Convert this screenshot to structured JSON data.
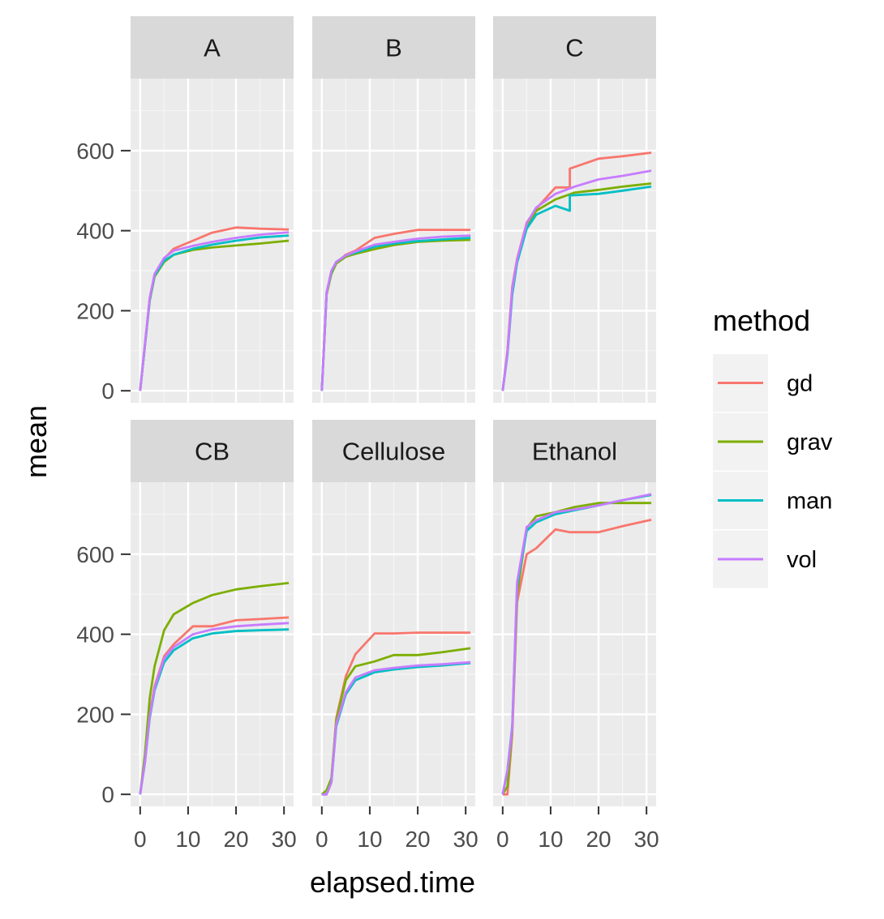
{
  "chart_data": {
    "type": "line",
    "layout": "facet_wrap",
    "xlabel": "elapsed.time",
    "ylabel": "mean",
    "xlim": [
      -2,
      32
    ],
    "x_ticks": [
      0,
      10,
      20,
      30
    ],
    "grid": true,
    "legend": {
      "title": "method",
      "position": "right",
      "entries": [
        "gd",
        "grav",
        "man",
        "vol"
      ]
    },
    "colors": {
      "gd": "#F8766D",
      "grav": "#7CAE00",
      "man": "#00BFC4",
      "vol": "#C77CFF"
    },
    "rows": [
      {
        "ylim": [
          -30,
          780
        ],
        "y_ticks": [
          0,
          200,
          400,
          600
        ],
        "panels": [
          {
            "label": "A",
            "series": [
              {
                "name": "gd",
                "x": [
                  0,
                  2,
                  3,
                  5,
                  7,
                  11,
                  15,
                  20,
                  25,
                  31
                ],
                "y": [
                  0,
                  230,
                  290,
                  330,
                  355,
                  375,
                  395,
                  408,
                  405,
                  403
                ]
              },
              {
                "name": "grav",
                "x": [
                  0,
                  2,
                  3,
                  5,
                  7,
                  11,
                  15,
                  20,
                  25,
                  31
                ],
                "y": [
                  0,
                  225,
                  285,
                  322,
                  340,
                  352,
                  358,
                  363,
                  368,
                  375
                ]
              },
              {
                "name": "man",
                "x": [
                  0,
                  2,
                  3,
                  5,
                  7,
                  11,
                  15,
                  20,
                  25,
                  31
                ],
                "y": [
                  0,
                  228,
                  288,
                  325,
                  340,
                  355,
                  365,
                  375,
                  383,
                  388
                ]
              },
              {
                "name": "vol",
                "x": [
                  0,
                  2,
                  3,
                  5,
                  7,
                  11,
                  15,
                  20,
                  25,
                  31
                ],
                "y": [
                  0,
                  232,
                  292,
                  332,
                  350,
                  362,
                  372,
                  382,
                  390,
                  396
                ]
              }
            ]
          },
          {
            "label": "B",
            "series": [
              {
                "name": "gd",
                "x": [
                  0,
                  1,
                  2,
                  3,
                  5,
                  7,
                  11,
                  15,
                  20,
                  25,
                  31
                ],
                "y": [
                  0,
                  240,
                  295,
                  320,
                  340,
                  350,
                  382,
                  392,
                  402,
                  402,
                  402
                ]
              },
              {
                "name": "grav",
                "x": [
                  0,
                  1,
                  2,
                  3,
                  5,
                  7,
                  11,
                  15,
                  20,
                  25,
                  31
                ],
                "y": [
                  0,
                  242,
                  292,
                  318,
                  335,
                  342,
                  354,
                  364,
                  372,
                  375,
                  377
                ]
              },
              {
                "name": "man",
                "x": [
                  0,
                  1,
                  2,
                  3,
                  5,
                  7,
                  11,
                  15,
                  20,
                  25,
                  31
                ],
                "y": [
                  0,
                  245,
                  298,
                  322,
                  338,
                  345,
                  360,
                  368,
                  374,
                  378,
                  382
                ]
              },
              {
                "name": "vol",
                "x": [
                  0,
                  1,
                  2,
                  3,
                  5,
                  7,
                  11,
                  15,
                  20,
                  25,
                  31
                ],
                "y": [
                  0,
                  245,
                  300,
                  322,
                  338,
                  348,
                  365,
                  372,
                  380,
                  385,
                  388
                ]
              }
            ]
          },
          {
            "label": "C",
            "series": [
              {
                "name": "gd",
                "x": [
                  0,
                  1,
                  2,
                  3,
                  5,
                  7,
                  11,
                  14,
                  14,
                  20,
                  25,
                  31
                ],
                "y": [
                  0,
                  100,
                  260,
                  330,
                  420,
                  455,
                  508,
                  508,
                  555,
                  580,
                  586,
                  595
                ]
              },
              {
                "name": "grav",
                "x": [
                  0,
                  1,
                  2,
                  3,
                  5,
                  7,
                  11,
                  15,
                  20,
                  25,
                  31
                ],
                "y": [
                  0,
                  95,
                  250,
                  325,
                  410,
                  450,
                  478,
                  495,
                  502,
                  510,
                  518
                ]
              },
              {
                "name": "man",
                "x": [
                  0,
                  1,
                  2,
                  3,
                  5,
                  7,
                  11,
                  14,
                  14,
                  20,
                  25,
                  31
                ],
                "y": [
                  0,
                  90,
                  240,
                  320,
                  405,
                  440,
                  462,
                  450,
                  488,
                  492,
                  500,
                  510
                ]
              },
              {
                "name": "vol",
                "x": [
                  0,
                  1,
                  2,
                  3,
                  5,
                  7,
                  11,
                  15,
                  20,
                  25,
                  31
                ],
                "y": [
                  0,
                  95,
                  255,
                  328,
                  418,
                  458,
                  492,
                  510,
                  528,
                  537,
                  550
                ]
              }
            ]
          }
        ]
      },
      {
        "ylim": [
          -30,
          780
        ],
        "y_ticks": [
          0,
          200,
          400,
          600
        ],
        "panels": [
          {
            "label": "CB",
            "series": [
              {
                "name": "gd",
                "x": [
                  0,
                  1,
                  2,
                  3,
                  5,
                  7,
                  11,
                  15,
                  20,
                  25,
                  31
                ],
                "y": [
                  0,
                  80,
                  200,
                  270,
                  345,
                  375,
                  420,
                  420,
                  435,
                  438,
                  442
                ]
              },
              {
                "name": "grav",
                "x": [
                  0,
                  1,
                  2,
                  3,
                  5,
                  7,
                  11,
                  15,
                  20,
                  25,
                  31
                ],
                "y": [
                  0,
                  100,
                  240,
                  320,
                  410,
                  450,
                  478,
                  498,
                  512,
                  520,
                  528
                ]
              },
              {
                "name": "man",
                "x": [
                  0,
                  1,
                  2,
                  3,
                  5,
                  7,
                  11,
                  15,
                  20,
                  25,
                  31
                ],
                "y": [
                  0,
                  80,
                  190,
                  260,
                  330,
                  360,
                  390,
                  402,
                  408,
                  410,
                  412
                ]
              },
              {
                "name": "vol",
                "x": [
                  0,
                  1,
                  2,
                  3,
                  5,
                  7,
                  11,
                  15,
                  20,
                  25,
                  31
                ],
                "y": [
                  0,
                  82,
                  195,
                  265,
                  340,
                  368,
                  400,
                  412,
                  420,
                  424,
                  428
                ]
              }
            ]
          },
          {
            "label": "Cellulose",
            "series": [
              {
                "name": "gd",
                "x": [
                  0,
                  1,
                  2,
                  3,
                  5,
                  7,
                  11,
                  15,
                  20,
                  25,
                  31
                ],
                "y": [
                  0,
                  0,
                  30,
                  190,
                  295,
                  350,
                  402,
                  402,
                  404,
                  404,
                  404
                ]
              },
              {
                "name": "grav",
                "x": [
                  0,
                  1,
                  2,
                  3,
                  5,
                  7,
                  11,
                  15,
                  20,
                  25,
                  31
                ],
                "y": [
                  0,
                  10,
                  40,
                  185,
                  285,
                  320,
                  332,
                  348,
                  348,
                  355,
                  365
                ]
              },
              {
                "name": "man",
                "x": [
                  0,
                  1,
                  2,
                  3,
                  5,
                  7,
                  11,
                  15,
                  20,
                  25,
                  31
                ],
                "y": [
                  0,
                  0,
                  30,
                  170,
                  250,
                  285,
                  305,
                  312,
                  318,
                  322,
                  328
                ]
              },
              {
                "name": "vol",
                "x": [
                  0,
                  1,
                  2,
                  3,
                  5,
                  7,
                  11,
                  15,
                  20,
                  25,
                  31
                ],
                "y": [
                  0,
                  0,
                  30,
                  175,
                  255,
                  292,
                  310,
                  316,
                  322,
                  325,
                  330
                ]
              }
            ]
          },
          {
            "label": "Ethanol",
            "series": [
              {
                "name": "gd",
                "x": [
                  0,
                  1,
                  2,
                  3,
                  5,
                  7,
                  11,
                  14,
                  20,
                  25,
                  31
                ],
                "y": [
                  0,
                  0,
                  150,
                  480,
                  600,
                  615,
                  662,
                  655,
                  655,
                  670,
                  686
                ]
              },
              {
                "name": "grav",
                "x": [
                  0,
                  1,
                  2,
                  3,
                  5,
                  7,
                  11,
                  15,
                  20,
                  25,
                  31
                ],
                "y": [
                  0,
                  20,
                  160,
                  500,
                  665,
                  695,
                  705,
                  718,
                  728,
                  728,
                  728
                ]
              },
              {
                "name": "man",
                "x": [
                  0,
                  1,
                  2,
                  3,
                  5,
                  7,
                  11,
                  15,
                  20,
                  25,
                  31
                ],
                "y": [
                  0,
                  60,
                  170,
                  520,
                  658,
                  680,
                  700,
                  710,
                  722,
                  735,
                  748
                ]
              },
              {
                "name": "vol",
                "x": [
                  0,
                  1,
                  2,
                  3,
                  5,
                  7,
                  11,
                  15,
                  20,
                  25,
                  31
                ],
                "y": [
                  0,
                  60,
                  165,
                  530,
                  668,
                  685,
                  705,
                  712,
                  722,
                  735,
                  750
                ]
              }
            ]
          }
        ]
      }
    ]
  }
}
